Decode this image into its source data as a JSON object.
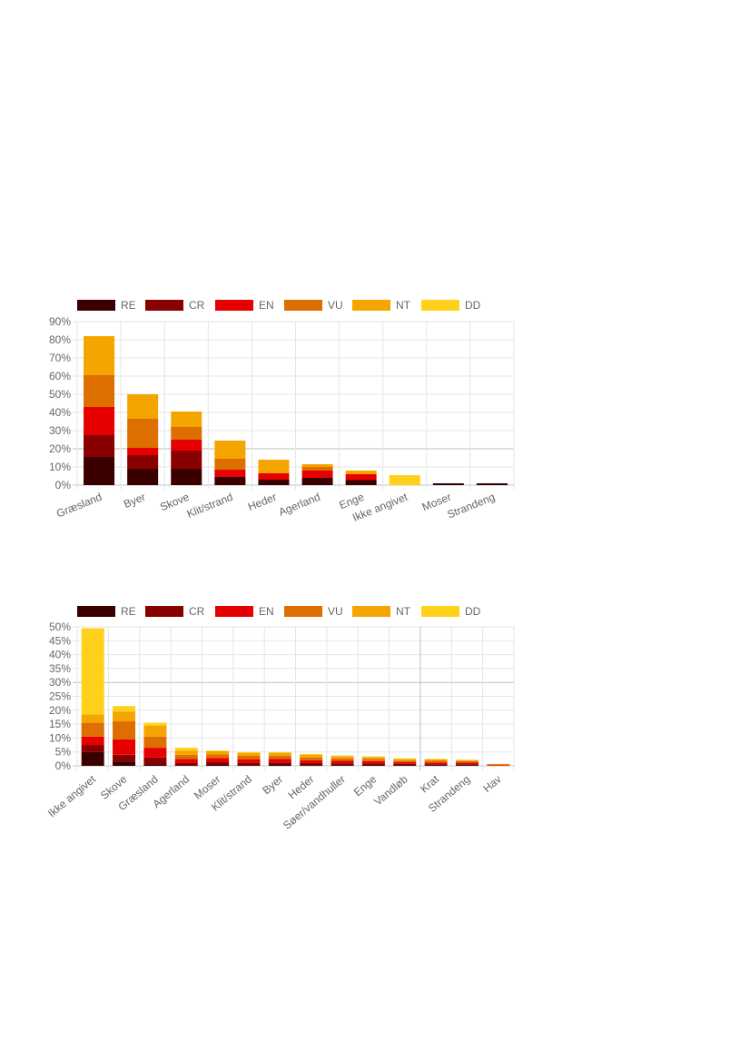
{
  "colors": {
    "RE": "#3a0000",
    "CR": "#880000",
    "EN": "#e60000",
    "VU": "#dd6e00",
    "NT": "#f5a500",
    "DD": "#ffd11a"
  },
  "chart_data": [
    {
      "type": "bar",
      "stacked": true,
      "legend": [
        "RE",
        "CR",
        "EN",
        "VU",
        "NT",
        "DD"
      ],
      "legend_position": "top-left",
      "grid": true,
      "ylim": [
        0,
        90
      ],
      "yticks": [
        "0%",
        "10%",
        "20%",
        "30%",
        "40%",
        "50%",
        "60%",
        "70%",
        "80%",
        "90%"
      ],
      "categories": [
        "Græsland",
        "Byer",
        "Skove",
        "Klit/strand",
        "Heder",
        "Agerland",
        "Enge",
        "Ikke angivet",
        "Moser",
        "Strandeng"
      ],
      "series": [
        {
          "name": "RE",
          "values": [
            15.5,
            9,
            9,
            4.5,
            3,
            4,
            2.5,
            0,
            1,
            1
          ]
        },
        {
          "name": "CR",
          "values": [
            12,
            7.5,
            10,
            0,
            0,
            0,
            0.5,
            0,
            0,
            0
          ]
        },
        {
          "name": "EN",
          "values": [
            15.5,
            4,
            6,
            4,
            3.5,
            4,
            3,
            0,
            0,
            0
          ]
        },
        {
          "name": "VU",
          "values": [
            17.5,
            16,
            7,
            6,
            0,
            2,
            0,
            0,
            0,
            0
          ]
        },
        {
          "name": "NT",
          "values": [
            21.5,
            13.5,
            8.5,
            10,
            7.5,
            1.5,
            2,
            0,
            0,
            0
          ]
        },
        {
          "name": "DD",
          "values": [
            0,
            0,
            0,
            0,
            0,
            0,
            0,
            5.5,
            0,
            0
          ]
        }
      ]
    },
    {
      "type": "bar",
      "stacked": true,
      "legend": [
        "RE",
        "CR",
        "EN",
        "VU",
        "NT",
        "DD"
      ],
      "legend_position": "top-left",
      "grid": true,
      "ylim": [
        0,
        50
      ],
      "yticks": [
        "0%",
        "5%",
        "10%",
        "15%",
        "20%",
        "25%",
        "30%",
        "35%",
        "40%",
        "45%",
        "50%"
      ],
      "categories": [
        "Ikke angivet",
        "Skove",
        "Græsland",
        "Agerland",
        "Moser",
        "Klit/strand",
        "Byer",
        "Heder",
        "Søer/vandhuller",
        "Enge",
        "Vandløb",
        "Krat",
        "Strandeng",
        "Hav"
      ],
      "series": [
        {
          "name": "RE",
          "values": [
            5,
            1.5,
            0.5,
            0.3,
            0.5,
            0.3,
            0.5,
            0.3,
            0.3,
            0.3,
            0.3,
            0.3,
            0.3,
            0
          ]
        },
        {
          "name": "CR",
          "values": [
            2.5,
            2.5,
            2.5,
            0.7,
            0.8,
            0.7,
            0.7,
            0.7,
            0.5,
            0.5,
            0.4,
            0.3,
            0.3,
            0
          ]
        },
        {
          "name": "EN",
          "values": [
            3,
            5.5,
            3.5,
            1.5,
            1.5,
            1.3,
            1.3,
            1,
            1,
            0.9,
            0.6,
            0.6,
            0.6,
            0.2
          ]
        },
        {
          "name": "VU",
          "values": [
            5,
            6.5,
            4,
            1.5,
            1.3,
            1.3,
            1.2,
            1,
            0.9,
            0.8,
            0.6,
            0.6,
            0.5,
            0.3
          ]
        },
        {
          "name": "NT",
          "values": [
            3,
            3.5,
            4,
            1.5,
            1.2,
            1.1,
            1,
            1,
            0.8,
            0.7,
            0.6,
            0.5,
            0.4,
            0.2
          ]
        },
        {
          "name": "DD",
          "values": [
            31,
            2,
            1,
            1,
            0.2,
            0.2,
            0.2,
            0.3,
            0.2,
            0.2,
            0.2,
            0.2,
            0.1,
            0
          ]
        }
      ]
    }
  ]
}
